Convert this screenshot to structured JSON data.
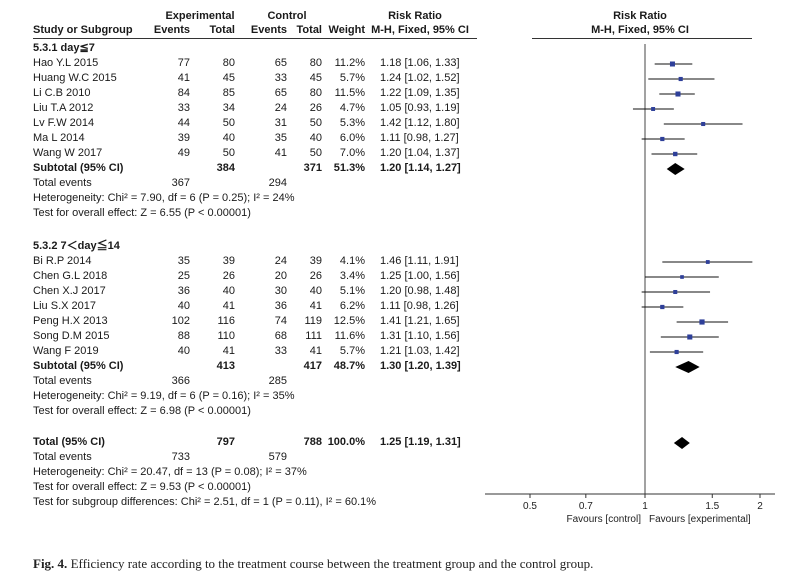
{
  "headers": {
    "study": "Study or Subgroup",
    "experimental_group": "Experimental",
    "control_group": "Control",
    "events": "Events",
    "total": "Total",
    "weight": "Weight",
    "rr_title": "Risk Ratio",
    "rr_method": "M-H, Fixed, 95% CI"
  },
  "subgroups": [
    {
      "title": "5.3.1 day≦7",
      "studies": [
        {
          "study": "Hao Y.L 2015",
          "e_events": "77",
          "e_total": "80",
          "c_events": "65",
          "c_total": "80",
          "weight": "11.2%",
          "ci_text": "1.18 [1.06, 1.33]"
        },
        {
          "study": "Huang W.C 2015",
          "e_events": "41",
          "e_total": "45",
          "c_events": "33",
          "c_total": "45",
          "weight": "5.7%",
          "ci_text": "1.24 [1.02, 1.52]"
        },
        {
          "study": "Li C.B 2010",
          "e_events": "84",
          "e_total": "85",
          "c_events": "65",
          "c_total": "80",
          "weight": "11.5%",
          "ci_text": "1.22 [1.09, 1.35]"
        },
        {
          "study": "Liu T.A 2012",
          "e_events": "33",
          "e_total": "34",
          "c_events": "24",
          "c_total": "26",
          "weight": "4.7%",
          "ci_text": "1.05 [0.93, 1.19]"
        },
        {
          "study": "Lv F.W 2014",
          "e_events": "44",
          "e_total": "50",
          "c_events": "31",
          "c_total": "50",
          "weight": "5.3%",
          "ci_text": "1.42 [1.12, 1.80]"
        },
        {
          "study": "Ma L 2014",
          "e_events": "39",
          "e_total": "40",
          "c_events": "35",
          "c_total": "40",
          "weight": "6.0%",
          "ci_text": "1.11 [0.98, 1.27]"
        },
        {
          "study": "Wang W 2017",
          "e_events": "49",
          "e_total": "50",
          "c_events": "41",
          "c_total": "50",
          "weight": "7.0%",
          "ci_text": "1.20 [1.04, 1.37]"
        }
      ],
      "subtotal": {
        "label": "Subtotal (95% CI)",
        "e_total": "384",
        "c_total": "371",
        "weight": "51.3%",
        "ci_text": "1.20 [1.14, 1.27]"
      },
      "total_events": {
        "label": "Total events",
        "e": "367",
        "c": "294"
      },
      "heterogeneity": "Heterogeneity: Chi² = 7.90, df = 6 (P = 0.25); I² = 24%",
      "overall_effect": "Test for overall effect: Z = 6.55 (P < 0.00001)"
    },
    {
      "title": "5.3.2 7＜day≦14",
      "studies": [
        {
          "study": "Bi R.P 2014",
          "e_events": "35",
          "e_total": "39",
          "c_events": "24",
          "c_total": "39",
          "weight": "4.1%",
          "ci_text": "1.46 [1.11, 1.91]"
        },
        {
          "study": "Chen G.L 2018",
          "e_events": "25",
          "e_total": "26",
          "c_events": "20",
          "c_total": "26",
          "weight": "3.4%",
          "ci_text": "1.25 [1.00, 1.56]"
        },
        {
          "study": "Chen X.J 2017",
          "e_events": "36",
          "e_total": "40",
          "c_events": "30",
          "c_total": "40",
          "weight": "5.1%",
          "ci_text": "1.20 [0.98, 1.48]"
        },
        {
          "study": "Liu S.X 2017",
          "e_events": "40",
          "e_total": "41",
          "c_events": "36",
          "c_total": "41",
          "weight": "6.2%",
          "ci_text": "1.11 [0.98, 1.26]"
        },
        {
          "study": "Peng H.X 2013",
          "e_events": "102",
          "e_total": "116",
          "c_events": "74",
          "c_total": "119",
          "weight": "12.5%",
          "ci_text": "1.41 [1.21, 1.65]"
        },
        {
          "study": "Song D.M 2015",
          "e_events": "88",
          "e_total": "110",
          "c_events": "68",
          "c_total": "111",
          "weight": "11.6%",
          "ci_text": "1.31 [1.10, 1.56]"
        },
        {
          "study": "Wang F 2019",
          "e_events": "40",
          "e_total": "41",
          "c_events": "33",
          "c_total": "41",
          "weight": "5.7%",
          "ci_text": "1.21 [1.03, 1.42]"
        }
      ],
      "subtotal": {
        "label": "Subtotal (95% CI)",
        "e_total": "413",
        "c_total": "417",
        "weight": "48.7%",
        "ci_text": "1.30 [1.20, 1.39]"
      },
      "total_events": {
        "label": "Total events",
        "e": "366",
        "c": "285"
      },
      "heterogeneity": "Heterogeneity: Chi² = 9.19, df = 6 (P = 0.16); I² = 35%",
      "overall_effect": "Test for overall effect: Z = 6.98 (P < 0.00001)"
    }
  ],
  "overall": {
    "label": "Total (95% CI)",
    "e_total": "797",
    "c_total": "788",
    "weight": "100.0%",
    "ci_text": "1.25 [1.19, 1.31]",
    "total_events": {
      "label": "Total events",
      "e": "733",
      "c": "579"
    },
    "heterogeneity": "Heterogeneity: Chi² = 20.47, df = 13 (P = 0.08); I² = 37%",
    "overall_effect": "Test for overall effect: Z = 9.53 (P < 0.00001)",
    "subgroup_diff": "Test for subgroup differences: Chi² = 2.51, df = 1 (P = 0.11), I² = 60.1%"
  },
  "caption": {
    "label": "Fig. 4.",
    "text": "Efficiency rate according to the treatment course between the treatment group and the control group."
  },
  "chart_data": {
    "type": "forest",
    "x_scale": "log",
    "xlim": [
      0.5,
      2
    ],
    "null_value": 1,
    "ticks": [
      "0.5",
      "0.7",
      "1",
      "1.5",
      "2"
    ],
    "favours_left": "Favours [control]",
    "favours_right": "Favours [experimental]",
    "subgroup_estimates": [
      [
        {
          "rr": 1.18,
          "lo": 1.06,
          "hi": 1.33,
          "weight": 11.2
        },
        {
          "rr": 1.24,
          "lo": 1.02,
          "hi": 1.52,
          "weight": 5.7
        },
        {
          "rr": 1.22,
          "lo": 1.09,
          "hi": 1.35,
          "weight": 11.5
        },
        {
          "rr": 1.05,
          "lo": 0.93,
          "hi": 1.19,
          "weight": 4.7
        },
        {
          "rr": 1.42,
          "lo": 1.12,
          "hi": 1.8,
          "weight": 5.3
        },
        {
          "rr": 1.11,
          "lo": 0.98,
          "hi": 1.27,
          "weight": 6.0
        },
        {
          "rr": 1.2,
          "lo": 1.04,
          "hi": 1.37,
          "weight": 7.0
        }
      ],
      [
        {
          "rr": 1.46,
          "lo": 1.11,
          "hi": 1.91,
          "weight": 4.1
        },
        {
          "rr": 1.25,
          "lo": 1.0,
          "hi": 1.56,
          "weight": 3.4
        },
        {
          "rr": 1.2,
          "lo": 0.98,
          "hi": 1.48,
          "weight": 5.1
        },
        {
          "rr": 1.11,
          "lo": 0.98,
          "hi": 1.26,
          "weight": 6.2
        },
        {
          "rr": 1.41,
          "lo": 1.21,
          "hi": 1.65,
          "weight": 12.5
        },
        {
          "rr": 1.31,
          "lo": 1.1,
          "hi": 1.56,
          "weight": 11.6
        },
        {
          "rr": 1.21,
          "lo": 1.03,
          "hi": 1.42,
          "weight": 5.7
        }
      ]
    ],
    "subtotal_estimates": [
      {
        "rr": 1.2,
        "lo": 1.14,
        "hi": 1.27
      },
      {
        "rr": 1.3,
        "lo": 1.2,
        "hi": 1.39
      }
    ],
    "overall_estimate": {
      "rr": 1.25,
      "lo": 1.19,
      "hi": 1.31
    },
    "colors": {
      "marker": "#2e3f99",
      "line": "#111111",
      "diamond": "#000000"
    }
  }
}
